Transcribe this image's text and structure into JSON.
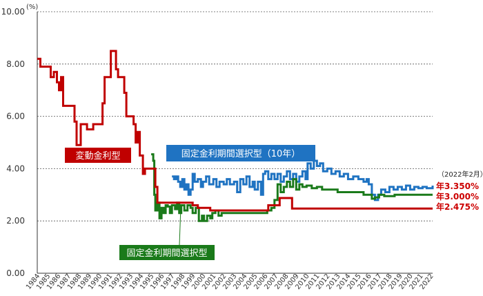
{
  "chart_data": {
    "type": "line",
    "unit_label": "(%)",
    "ylim": [
      0,
      10
    ],
    "y_ticks": [
      "0.00",
      "2.00",
      "4.00",
      "6.00",
      "8.00",
      "10.00"
    ],
    "y_tick_values": [
      0,
      2,
      4,
      6,
      8,
      10
    ],
    "grid": "horizontal-dotted",
    "x_range": [
      1984,
      2022.17
    ],
    "x_ticks": [
      "1984",
      "1985",
      "1986",
      "1987",
      "1988",
      "1989",
      "1990",
      "1991",
      "1992",
      "1993",
      "1994",
      "1995",
      "1996",
      "1997",
      "1998",
      "1999",
      "2000",
      "2001",
      "2002",
      "2003",
      "2004",
      "2005",
      "2006",
      "2007",
      "2008",
      "2009",
      "2010",
      "2011",
      "2012",
      "2013",
      "2014",
      "2015",
      "2016",
      "2017",
      "2018",
      "2019",
      "2020",
      "2021",
      "2022"
    ],
    "date_note": "（2022年2月）",
    "series": [
      {
        "name": "変動金利型",
        "color": "#c00000",
        "end_label": "年2.475%",
        "points": [
          [
            1984.0,
            8.2
          ],
          [
            1984.3,
            7.9
          ],
          [
            1985.0,
            7.9
          ],
          [
            1985.3,
            7.5
          ],
          [
            1985.6,
            7.7
          ],
          [
            1985.9,
            7.3
          ],
          [
            1986.1,
            7.0
          ],
          [
            1986.3,
            7.5
          ],
          [
            1986.5,
            6.4
          ],
          [
            1987.0,
            6.4
          ],
          [
            1987.4,
            6.4
          ],
          [
            1987.6,
            5.8
          ],
          [
            1987.8,
            4.9
          ],
          [
            1988.0,
            4.9
          ],
          [
            1988.2,
            5.7
          ],
          [
            1988.6,
            5.7
          ],
          [
            1988.8,
            5.5
          ],
          [
            1989.2,
            5.5
          ],
          [
            1989.4,
            5.7
          ],
          [
            1990.0,
            5.7
          ],
          [
            1990.3,
            6.5
          ],
          [
            1990.5,
            7.5
          ],
          [
            1990.9,
            7.5
          ],
          [
            1991.1,
            8.5
          ],
          [
            1991.4,
            8.5
          ],
          [
            1991.6,
            7.8
          ],
          [
            1991.8,
            7.5
          ],
          [
            1992.2,
            7.5
          ],
          [
            1992.4,
            6.9
          ],
          [
            1992.6,
            6.0
          ],
          [
            1993.0,
            6.0
          ],
          [
            1993.3,
            5.7
          ],
          [
            1993.5,
            5.0
          ],
          [
            1993.7,
            5.4
          ],
          [
            1993.9,
            4.5
          ],
          [
            1994.1,
            4.5
          ],
          [
            1994.2,
            3.8
          ],
          [
            1994.4,
            4.0
          ],
          [
            1995.0,
            4.0
          ],
          [
            1995.1,
            4.0
          ],
          [
            1995.4,
            3.3
          ],
          [
            1995.6,
            2.7
          ],
          [
            1999.0,
            2.6
          ],
          [
            1999.5,
            2.5
          ],
          [
            2000.5,
            2.5
          ],
          [
            2000.7,
            2.4
          ],
          [
            2006.0,
            2.4
          ],
          [
            2006.3,
            2.6
          ],
          [
            2007.2,
            2.6
          ],
          [
            2007.4,
            2.875
          ],
          [
            2008.4,
            2.875
          ],
          [
            2008.6,
            2.475
          ],
          [
            2022.17,
            2.475
          ]
        ]
      },
      {
        "name": "固定金利期間選択型",
        "color": "#1a7a1a",
        "end_label": "年3.000%",
        "points": [
          [
            1995.0,
            4.55
          ],
          [
            1995.2,
            4.3
          ],
          [
            1995.3,
            3.0
          ],
          [
            1995.4,
            2.4
          ],
          [
            1995.6,
            2.7
          ],
          [
            1995.8,
            2.1
          ],
          [
            1996.0,
            2.5
          ],
          [
            1996.2,
            2.3
          ],
          [
            1996.4,
            2.6
          ],
          [
            1996.6,
            2.55
          ],
          [
            1996.8,
            2.3
          ],
          [
            1997.0,
            2.6
          ],
          [
            1997.3,
            2.45
          ],
          [
            1997.5,
            2.7
          ],
          [
            1997.7,
            2.3
          ],
          [
            1997.9,
            2.6
          ],
          [
            1998.2,
            2.4
          ],
          [
            1998.5,
            2.6
          ],
          [
            1998.8,
            2.5
          ],
          [
            1999.0,
            2.3
          ],
          [
            1999.3,
            2.5
          ],
          [
            1999.6,
            2.0
          ],
          [
            1999.9,
            2.2
          ],
          [
            2000.1,
            2.0
          ],
          [
            2000.4,
            2.2
          ],
          [
            2000.7,
            2.1
          ],
          [
            2000.9,
            2.3
          ],
          [
            2001.2,
            2.4
          ],
          [
            2001.5,
            2.2
          ],
          [
            2001.8,
            2.3
          ],
          [
            2002.5,
            2.3
          ],
          [
            2005.0,
            2.3
          ],
          [
            2005.8,
            2.3
          ],
          [
            2006.2,
            2.4
          ],
          [
            2006.6,
            2.5
          ],
          [
            2006.9,
            2.8
          ],
          [
            2007.2,
            3.4
          ],
          [
            2007.5,
            3.1
          ],
          [
            2007.8,
            3.3
          ],
          [
            2008.1,
            3.5
          ],
          [
            2008.4,
            3.3
          ],
          [
            2008.7,
            3.6
          ],
          [
            2009.0,
            3.2
          ],
          [
            2009.3,
            3.4
          ],
          [
            2009.6,
            3.3
          ],
          [
            2010.0,
            3.35
          ],
          [
            2010.5,
            3.25
          ],
          [
            2011.0,
            3.3
          ],
          [
            2011.5,
            3.2
          ],
          [
            2012.0,
            3.2
          ],
          [
            2013.0,
            3.1
          ],
          [
            2014.0,
            3.1
          ],
          [
            2015.0,
            3.1
          ],
          [
            2015.5,
            3.0
          ],
          [
            2016.0,
            3.0
          ],
          [
            2016.3,
            2.85
          ],
          [
            2016.6,
            2.9
          ],
          [
            2017.0,
            3.0
          ],
          [
            2017.5,
            2.95
          ],
          [
            2018.0,
            2.95
          ],
          [
            2018.5,
            3.0
          ],
          [
            2019.0,
            3.0
          ],
          [
            2020.0,
            3.0
          ],
          [
            2021.0,
            3.0
          ],
          [
            2022.17,
            3.0
          ]
        ]
      },
      {
        "name": "固定金利期間選択型（10年）",
        "color": "#1f73c2",
        "end_label": "年3.350%",
        "points": [
          [
            1997.0,
            3.7
          ],
          [
            1997.2,
            3.6
          ],
          [
            1997.4,
            3.7
          ],
          [
            1997.6,
            3.5
          ],
          [
            1997.8,
            3.3
          ],
          [
            1998.0,
            3.6
          ],
          [
            1998.2,
            3.2
          ],
          [
            1998.4,
            3.4
          ],
          [
            1998.6,
            3.0
          ],
          [
            1998.8,
            3.2
          ],
          [
            1999.0,
            3.8
          ],
          [
            1999.2,
            3.5
          ],
          [
            1999.5,
            3.6
          ],
          [
            1999.8,
            3.3
          ],
          [
            2000.0,
            3.5
          ],
          [
            2000.3,
            3.7
          ],
          [
            2000.6,
            3.4
          ],
          [
            2001.0,
            3.6
          ],
          [
            2001.3,
            3.3
          ],
          [
            2001.6,
            3.5
          ],
          [
            2002.0,
            3.4
          ],
          [
            2002.3,
            3.6
          ],
          [
            2002.6,
            3.4
          ],
          [
            2003.0,
            3.5
          ],
          [
            2003.3,
            3.1
          ],
          [
            2003.6,
            3.6
          ],
          [
            2003.9,
            3.4
          ],
          [
            2004.2,
            3.7
          ],
          [
            2004.5,
            3.3
          ],
          [
            2004.8,
            3.5
          ],
          [
            2005.0,
            3.2
          ],
          [
            2005.3,
            3.5
          ],
          [
            2005.6,
            3.0
          ],
          [
            2005.8,
            3.8
          ],
          [
            2006.0,
            3.9
          ],
          [
            2006.3,
            3.6
          ],
          [
            2006.6,
            3.8
          ],
          [
            2006.9,
            3.6
          ],
          [
            2007.2,
            3.8
          ],
          [
            2007.5,
            3.5
          ],
          [
            2007.8,
            3.7
          ],
          [
            2008.1,
            3.9
          ],
          [
            2008.4,
            3.6
          ],
          [
            2008.7,
            3.8
          ],
          [
            2009.0,
            3.5
          ],
          [
            2009.3,
            3.7
          ],
          [
            2009.6,
            3.9
          ],
          [
            2009.9,
            3.6
          ],
          [
            2010.1,
            4.2
          ],
          [
            2010.4,
            4.0
          ],
          [
            2010.7,
            4.3
          ],
          [
            2011.0,
            4.1
          ],
          [
            2011.3,
            4.2
          ],
          [
            2011.6,
            3.9
          ],
          [
            2012.0,
            4.0
          ],
          [
            2012.4,
            3.8
          ],
          [
            2012.8,
            3.9
          ],
          [
            2013.2,
            3.7
          ],
          [
            2013.6,
            3.8
          ],
          [
            2014.0,
            3.6
          ],
          [
            2014.5,
            3.7
          ],
          [
            2015.0,
            3.6
          ],
          [
            2015.5,
            3.5
          ],
          [
            2015.8,
            3.6
          ],
          [
            2016.0,
            3.4
          ],
          [
            2016.3,
            3.0
          ],
          [
            2016.6,
            2.8
          ],
          [
            2016.9,
            3.0
          ],
          [
            2017.2,
            3.2
          ],
          [
            2017.6,
            3.1
          ],
          [
            2018.0,
            3.3
          ],
          [
            2018.4,
            3.2
          ],
          [
            2018.8,
            3.3
          ],
          [
            2019.2,
            3.2
          ],
          [
            2019.6,
            3.35
          ],
          [
            2020.0,
            3.2
          ],
          [
            2020.4,
            3.3
          ],
          [
            2020.8,
            3.25
          ],
          [
            2021.2,
            3.3
          ],
          [
            2021.6,
            3.25
          ],
          [
            2022.17,
            3.35
          ]
        ]
      }
    ]
  }
}
